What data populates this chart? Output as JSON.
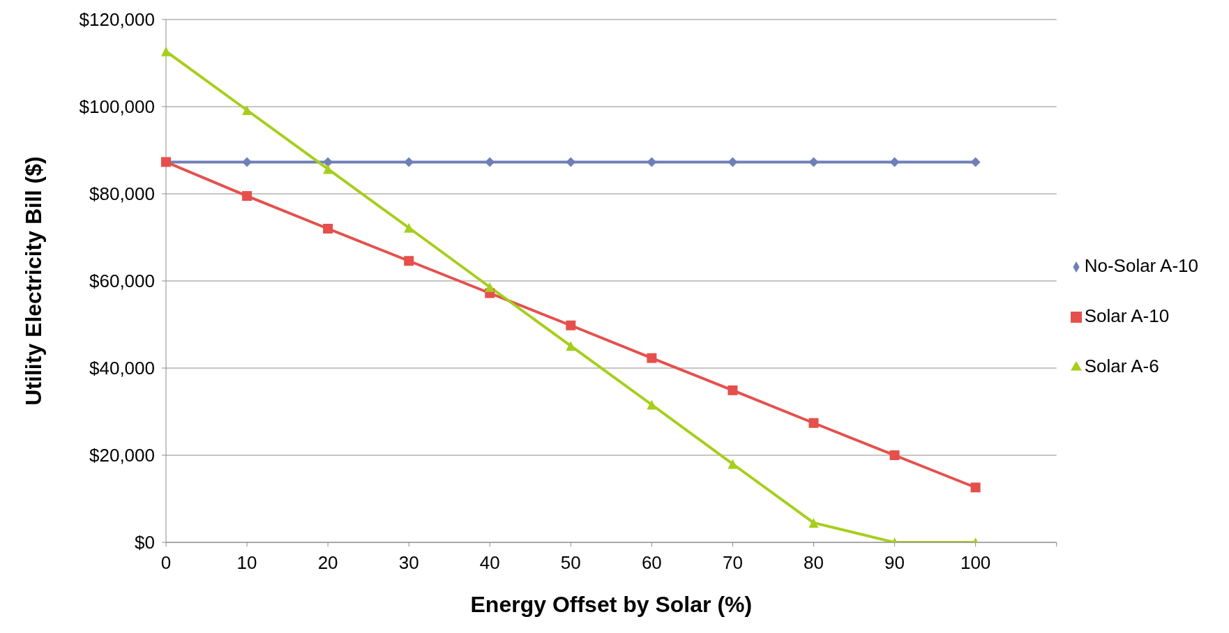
{
  "chart_data": {
    "type": "line",
    "xlabel": "Energy Offset by Solar (%)",
    "ylabel": "Utility Electricity Bill ($)",
    "categories": [
      "0",
      "10",
      "20",
      "30",
      "40",
      "50",
      "60",
      "70",
      "80",
      "90",
      "100",
      null
    ],
    "series": [
      {
        "name": "No-Solar A-10",
        "color": "#6f7fb8",
        "marker": "diamond",
        "values": [
          87300,
          87300,
          87300,
          87300,
          87300,
          87300,
          87300,
          87300,
          87300,
          87300,
          87300,
          null
        ]
      },
      {
        "name": "Solar A-10",
        "color": "#e5504c",
        "marker": "square",
        "values": [
          87300,
          79500,
          72000,
          64600,
          57200,
          49800,
          42300,
          34900,
          27400,
          20000,
          12600,
          null
        ]
      },
      {
        "name": "Solar A-6",
        "color": "#a6ce1b",
        "marker": "triangle",
        "values": [
          112700,
          99200,
          85700,
          72200,
          58600,
          45100,
          31600,
          18000,
          4500,
          0,
          0,
          null
        ]
      }
    ],
    "ylim": [
      0,
      120000
    ],
    "yticks": [
      {
        "value": 0,
        "label": "$0"
      },
      {
        "value": 20000,
        "label": "$20,000"
      },
      {
        "value": 40000,
        "label": "$40,000"
      },
      {
        "value": 60000,
        "label": "$60,000"
      },
      {
        "value": 80000,
        "label": "$80,000"
      },
      {
        "value": 100000,
        "label": "$100,000"
      },
      {
        "value": 120000,
        "label": "$120,000"
      }
    ],
    "grid": "y",
    "legend": "right"
  }
}
